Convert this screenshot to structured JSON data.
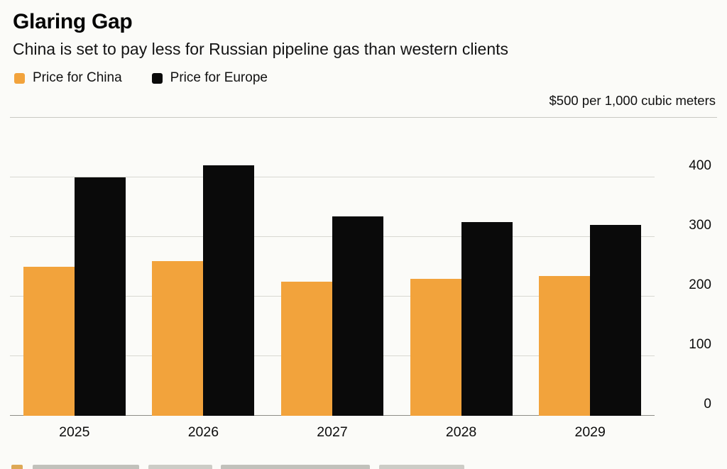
{
  "title": "Glaring Gap",
  "subtitle": "China is set to pay less for Russian pipeline gas than western clients",
  "unit_note": "$500 per 1,000 cubic meters",
  "legend": [
    {
      "label": "Price for China",
      "color": "#f2a33c"
    },
    {
      "label": "Price for Europe",
      "color": "#0a0a0a"
    }
  ],
  "chart_data": {
    "type": "bar",
    "title": "Glaring Gap",
    "subtitle": "China is set to pay less for Russian pipeline gas than western clients",
    "unit_note": "$500 per 1,000 cubic meters",
    "categories": [
      "2025",
      "2026",
      "2027",
      "2028",
      "2029"
    ],
    "series": [
      {
        "name": "Price for China",
        "color": "#f2a33c",
        "values": [
          250,
          260,
          225,
          230,
          235
        ]
      },
      {
        "name": "Price for Europe",
        "color": "#0a0a0a",
        "values": [
          400,
          420,
          335,
          325,
          320
        ]
      }
    ],
    "xlabel": "",
    "ylabel": "$ per 1,000 cubic meters",
    "ylim": [
      0,
      500
    ],
    "yticks": [
      0,
      100,
      200,
      300,
      400
    ],
    "grid": true,
    "legend_position": "top-left",
    "ytick_side": "right"
  }
}
